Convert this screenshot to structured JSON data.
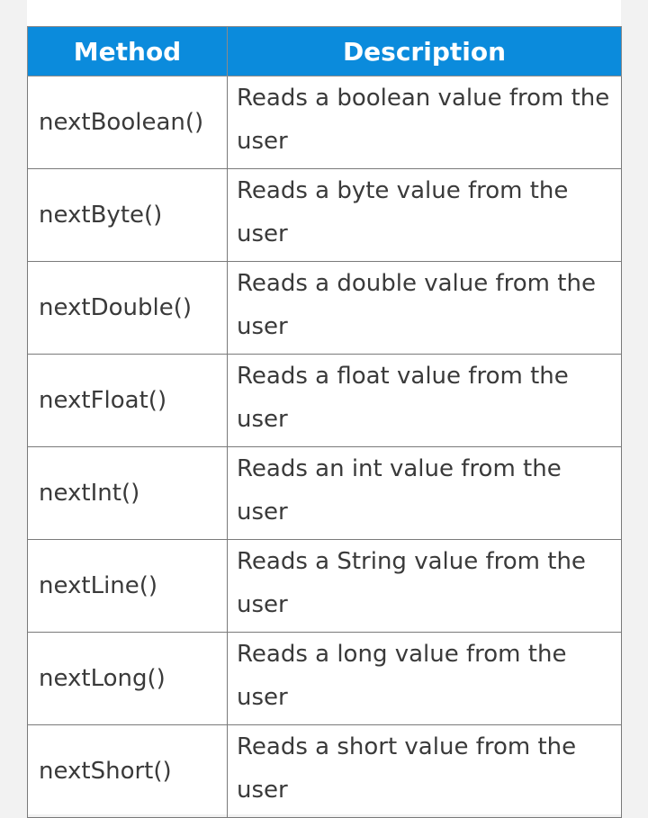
{
  "table": {
    "headers": {
      "method": "Method",
      "description": "Description"
    },
    "rows": [
      {
        "method": "nextBoolean()",
        "description": "Reads a boolean value from the user"
      },
      {
        "method": "nextByte()",
        "description": "Reads a byte value from the user"
      },
      {
        "method": "nextDouble()",
        "description": "Reads a double value from the user"
      },
      {
        "method": "nextFloat()",
        "description": "Reads a float value from the user"
      },
      {
        "method": "nextInt()",
        "description": "Reads an int value from the user"
      },
      {
        "method": "nextLine()",
        "description": "Reads a String value from the user"
      },
      {
        "method": "nextLong()",
        "description": "Reads a long value from the user"
      },
      {
        "method": "nextShort()",
        "description": "Reads a short value from the user"
      }
    ]
  },
  "colors": {
    "header_background": "#0b8bdc",
    "header_text": "#ffffff",
    "cell_text": "#3a3a3a",
    "border": "#7a7a7a",
    "page_background": "#f2f2f2"
  }
}
